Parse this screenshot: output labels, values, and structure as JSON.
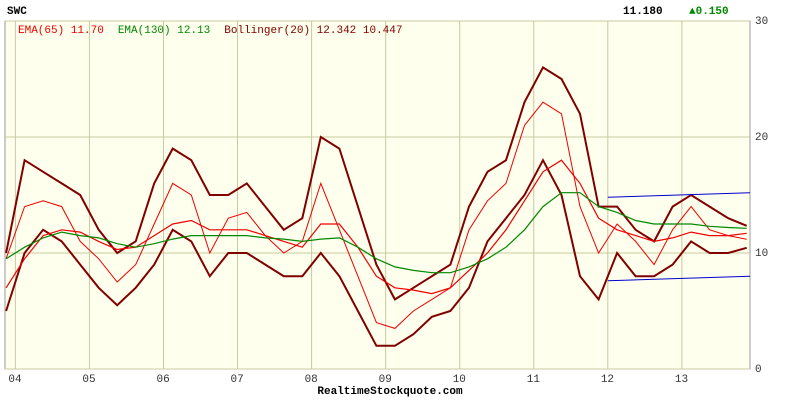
{
  "chart_data": {
    "type": "line",
    "title": "SWC",
    "last": {
      "value": 11.18,
      "label": "11.180"
    },
    "change": {
      "value": 0.15,
      "label": "▲0.150"
    },
    "source": "RealtimeStockquote.com",
    "xlim": [
      2003.86,
      2013.92
    ],
    "xticks": [
      {
        "value": 2004,
        "label": "04"
      },
      {
        "value": 2005,
        "label": "05"
      },
      {
        "value": 2006,
        "label": "06"
      },
      {
        "value": 2007,
        "label": "07"
      },
      {
        "value": 2008,
        "label": "08"
      },
      {
        "value": 2009,
        "label": "09"
      },
      {
        "value": 2010,
        "label": "10"
      },
      {
        "value": 2011,
        "label": "11"
      },
      {
        "value": 2012,
        "label": "12"
      },
      {
        "value": 2013,
        "label": "13"
      }
    ],
    "ylim": [
      0,
      30
    ],
    "yticks": [
      0,
      10,
      20,
      30
    ],
    "grid": true,
    "x": [
      2003.875,
      2004.125,
      2004.375,
      2004.625,
      2004.875,
      2005.125,
      2005.375,
      2005.625,
      2005.875,
      2006.125,
      2006.375,
      2006.625,
      2006.875,
      2007.125,
      2007.375,
      2007.625,
      2007.875,
      2008.125,
      2008.375,
      2008.625,
      2008.875,
      2009.125,
      2009.375,
      2009.625,
      2009.875,
      2010.125,
      2010.375,
      2010.625,
      2010.875,
      2011.125,
      2011.375,
      2011.625,
      2011.875,
      2012.125,
      2012.375,
      2012.625,
      2012.875,
      2013.125,
      2013.375,
      2013.625,
      2013.875
    ],
    "price": {
      "color": "#ee0000",
      "values": [
        9.5,
        14,
        14.5,
        14,
        11,
        9.5,
        7.5,
        9,
        12.5,
        16,
        15,
        10,
        13,
        13.5,
        11.5,
        10,
        11,
        16,
        12,
        8,
        4,
        3.5,
        5,
        6,
        7,
        12,
        14.5,
        16,
        21,
        23,
        22,
        14,
        10,
        12.5,
        11,
        9,
        12,
        14,
        12,
        11.5,
        11.18
      ]
    },
    "series": [
      {
        "name": "EMA(65) 11.70",
        "color": "#ee0000",
        "values": [
          7,
          9.5,
          11.5,
          12,
          11.8,
          11,
          10.3,
          10.5,
          11.5,
          12.5,
          12.8,
          12,
          12,
          12,
          11.5,
          11,
          10.5,
          12.5,
          12.5,
          10.5,
          8,
          7,
          6.8,
          6.5,
          7,
          8.5,
          10,
          12,
          14.5,
          17,
          18,
          16,
          13,
          12,
          11.5,
          11,
          11.3,
          11.8,
          11.5,
          11.5,
          11.7
        ]
      },
      {
        "name": "EMA(130) 12.13",
        "color": "#008800",
        "values": [
          9.5,
          10.5,
          11.3,
          11.8,
          11.5,
          11.3,
          10.8,
          10.5,
          10.8,
          11.2,
          11.5,
          11.5,
          11.5,
          11.5,
          11.3,
          11.2,
          11,
          11.2,
          11.3,
          10.5,
          9.5,
          8.8,
          8.5,
          8.3,
          8.3,
          8.8,
          9.5,
          10.5,
          12,
          14,
          15.2,
          15.2,
          14,
          13.5,
          12.8,
          12.5,
          12.5,
          12.5,
          12.3,
          12.2,
          12.13
        ]
      }
    ],
    "bands": {
      "name": "Bollinger(20) 12.342 10.447",
      "color": "#800000",
      "upper": [
        10,
        18,
        17,
        16,
        15,
        12,
        10,
        11,
        16,
        19,
        18,
        15,
        15,
        16,
        14,
        12,
        13,
        20,
        19,
        14,
        9,
        6,
        7,
        8,
        9,
        14,
        17,
        18,
        23,
        26,
        25,
        22,
        14,
        14,
        12,
        11,
        14,
        15,
        14,
        13,
        12.342
      ],
      "lower": [
        5,
        10,
        12,
        11,
        9,
        7,
        5.5,
        7,
        9,
        12,
        11,
        8,
        10,
        10,
        9,
        8,
        8,
        10,
        8,
        5,
        2,
        2,
        3,
        4.5,
        5,
        7,
        11,
        13,
        15,
        18,
        15,
        8,
        6,
        10,
        8,
        8,
        9,
        11,
        10,
        10,
        10.447
      ]
    },
    "trendlines": [
      {
        "color": "#0000cc",
        "x": [
          2012,
          2013.92
        ],
        "values": [
          14.8,
          15.2
        ]
      },
      {
        "color": "#0000cc",
        "x": [
          2012,
          2013.92
        ],
        "values": [
          7.6,
          8
        ]
      }
    ]
  }
}
